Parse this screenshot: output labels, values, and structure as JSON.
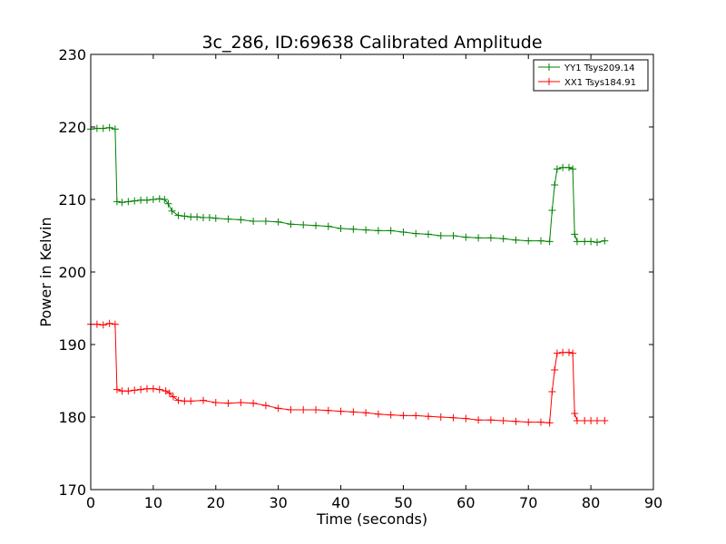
{
  "chart_data": {
    "type": "line",
    "title": "3c_286, ID:69638 Calibrated Amplitude",
    "xlabel": "Time (seconds)",
    "ylabel": "Power in Kelvin",
    "xlim": [
      0,
      90
    ],
    "ylim": [
      170,
      230
    ],
    "xticks": [
      0,
      10,
      20,
      30,
      40,
      50,
      60,
      70,
      80,
      90
    ],
    "yticks": [
      170,
      180,
      190,
      200,
      210,
      220,
      230
    ],
    "grid": false,
    "legend_position": "top-right",
    "marker": "+",
    "series": [
      {
        "name": "YY1 Tsys209.14",
        "color": "#008000",
        "points": [
          [
            0,
            219.7
          ],
          [
            1,
            219.8
          ],
          [
            2,
            219.8
          ],
          [
            3,
            219.9
          ],
          [
            3.9,
            219.7
          ],
          [
            4.2,
            209.7
          ],
          [
            5,
            209.6
          ],
          [
            6,
            209.7
          ],
          [
            7,
            209.8
          ],
          [
            8,
            209.9
          ],
          [
            9,
            209.9
          ],
          [
            10,
            210.0
          ],
          [
            11,
            210.1
          ],
          [
            11.8,
            210.0
          ],
          [
            12.4,
            209.4
          ],
          [
            13,
            208.4
          ],
          [
            14,
            207.8
          ],
          [
            15,
            207.7
          ],
          [
            16,
            207.6
          ],
          [
            17,
            207.6
          ],
          [
            18,
            207.5
          ],
          [
            19,
            207.5
          ],
          [
            20,
            207.4
          ],
          [
            22,
            207.3
          ],
          [
            24,
            207.2
          ],
          [
            26,
            207.0
          ],
          [
            28,
            207.0
          ],
          [
            30,
            206.9
          ],
          [
            32,
            206.6
          ],
          [
            34,
            206.5
          ],
          [
            36,
            206.4
          ],
          [
            38,
            206.3
          ],
          [
            40,
            206.0
          ],
          [
            42,
            205.9
          ],
          [
            44,
            205.8
          ],
          [
            46,
            205.7
          ],
          [
            48,
            205.7
          ],
          [
            50,
            205.5
          ],
          [
            52,
            205.3
          ],
          [
            54,
            205.2
          ],
          [
            56,
            205.0
          ],
          [
            58,
            205.0
          ],
          [
            60,
            204.8
          ],
          [
            62,
            204.7
          ],
          [
            64,
            204.7
          ],
          [
            66,
            204.6
          ],
          [
            68,
            204.4
          ],
          [
            70,
            204.3
          ],
          [
            72,
            204.3
          ],
          [
            73.4,
            204.2
          ],
          [
            73.8,
            208.5
          ],
          [
            74.2,
            212.0
          ],
          [
            74.6,
            214.2
          ],
          [
            75.5,
            214.4
          ],
          [
            76.5,
            214.4
          ],
          [
            77.1,
            214.2
          ],
          [
            77.4,
            205.2
          ],
          [
            77.8,
            204.2
          ],
          [
            79,
            204.2
          ],
          [
            80,
            204.2
          ],
          [
            81,
            204.1
          ],
          [
            82.2,
            204.3
          ]
        ]
      },
      {
        "name": "XX1 Tsys184.91",
        "color": "#ff0000",
        "points": [
          [
            0,
            192.8
          ],
          [
            1,
            192.8
          ],
          [
            2,
            192.7
          ],
          [
            3,
            192.9
          ],
          [
            3.9,
            192.8
          ],
          [
            4.2,
            183.8
          ],
          [
            5,
            183.6
          ],
          [
            6,
            183.6
          ],
          [
            7,
            183.7
          ],
          [
            8,
            183.8
          ],
          [
            9,
            183.9
          ],
          [
            10,
            183.9
          ],
          [
            11,
            183.8
          ],
          [
            12,
            183.6
          ],
          [
            12.6,
            183.3
          ],
          [
            13.2,
            182.8
          ],
          [
            14,
            182.3
          ],
          [
            15,
            182.2
          ],
          [
            16,
            182.2
          ],
          [
            18,
            182.3
          ],
          [
            20,
            182.0
          ],
          [
            22,
            181.9
          ],
          [
            24,
            182.0
          ],
          [
            26,
            181.9
          ],
          [
            28,
            181.6
          ],
          [
            30,
            181.2
          ],
          [
            32,
            181.0
          ],
          [
            34,
            181.0
          ],
          [
            36,
            181.0
          ],
          [
            38,
            180.9
          ],
          [
            40,
            180.8
          ],
          [
            42,
            180.7
          ],
          [
            44,
            180.6
          ],
          [
            46,
            180.4
          ],
          [
            48,
            180.3
          ],
          [
            50,
            180.2
          ],
          [
            52,
            180.2
          ],
          [
            54,
            180.1
          ],
          [
            56,
            180.0
          ],
          [
            58,
            179.9
          ],
          [
            60,
            179.8
          ],
          [
            62,
            179.6
          ],
          [
            64,
            179.6
          ],
          [
            66,
            179.5
          ],
          [
            68,
            179.4
          ],
          [
            70,
            179.3
          ],
          [
            72,
            179.3
          ],
          [
            73.4,
            179.2
          ],
          [
            73.8,
            183.5
          ],
          [
            74.2,
            186.5
          ],
          [
            74.6,
            188.8
          ],
          [
            75.5,
            188.9
          ],
          [
            76.5,
            188.9
          ],
          [
            77.1,
            188.8
          ],
          [
            77.4,
            180.5
          ],
          [
            77.8,
            179.5
          ],
          [
            79,
            179.5
          ],
          [
            80,
            179.5
          ],
          [
            81,
            179.5
          ],
          [
            82.2,
            179.5
          ]
        ]
      }
    ]
  }
}
